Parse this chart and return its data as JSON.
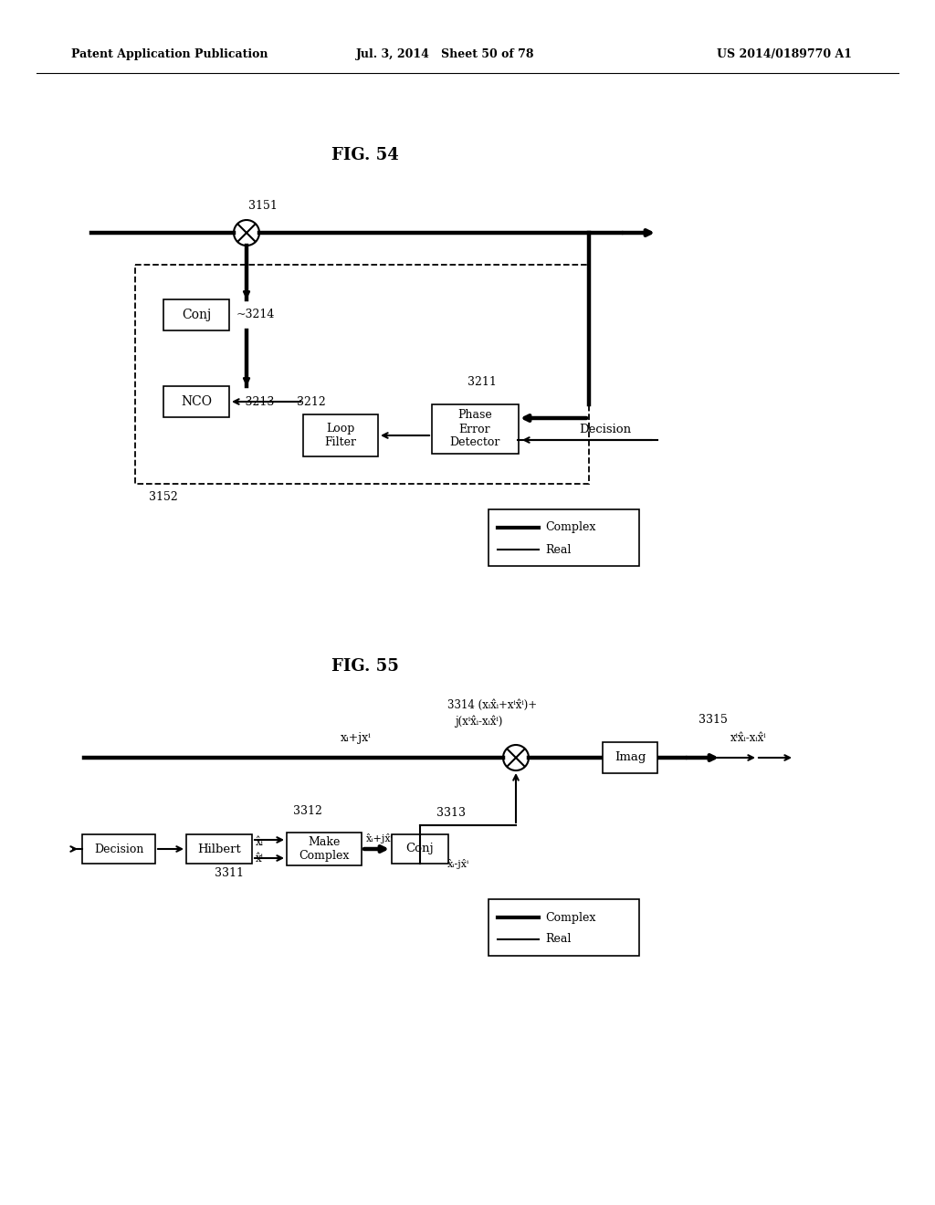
{
  "bg": "#ffffff",
  "header_left": "Patent Application Publication",
  "header_mid": "Jul. 3, 2014   Sheet 50 of 78",
  "header_right": "US 2014/0189770 A1",
  "fig54_title": "FIG. 54",
  "fig55_title": "FIG. 55",
  "f54": {
    "ref3151": "3151",
    "ref3152": "3152",
    "ref3214": "~3214",
    "ref3213": "~3213",
    "ref3212": "3212",
    "ref3211": "3211",
    "conj": "Conj",
    "nco": "NCO",
    "loop": "Loop\nFilter",
    "phase": "Phase\nError\nDetector",
    "decision": "Decision",
    "leg_complex": "Complex",
    "leg_real": "Real"
  },
  "f55": {
    "decision": "Decision",
    "hilbert": "Hilbert",
    "ref3311": "3311",
    "make_complex": "Make\nComplex",
    "ref3312": "3312",
    "conj": "Conj",
    "ref3313": "3313",
    "imag": "Imag",
    "ref3315": "3315",
    "label3314a": "3314 (xᵢx̂ᵢ+xⁱx̂ⁱ)+",
    "label3314b": "j(xⁱx̂ᵢ-xᵢx̂ⁱ)",
    "input_label": "xᵢ+jxⁱ",
    "xi_hat": "x̂ᵢ",
    "xq_hat": "x̂ⁱ",
    "xihxqh": "x̂ᵢ+jx̂ⁱ",
    "xihxqh_conj": "x̂ᵢ-jx̂ⁱ",
    "output_label": "xⁱx̂ᵢ-xᵢx̂ⁱ",
    "leg_complex": "Complex",
    "leg_real": "Real"
  }
}
